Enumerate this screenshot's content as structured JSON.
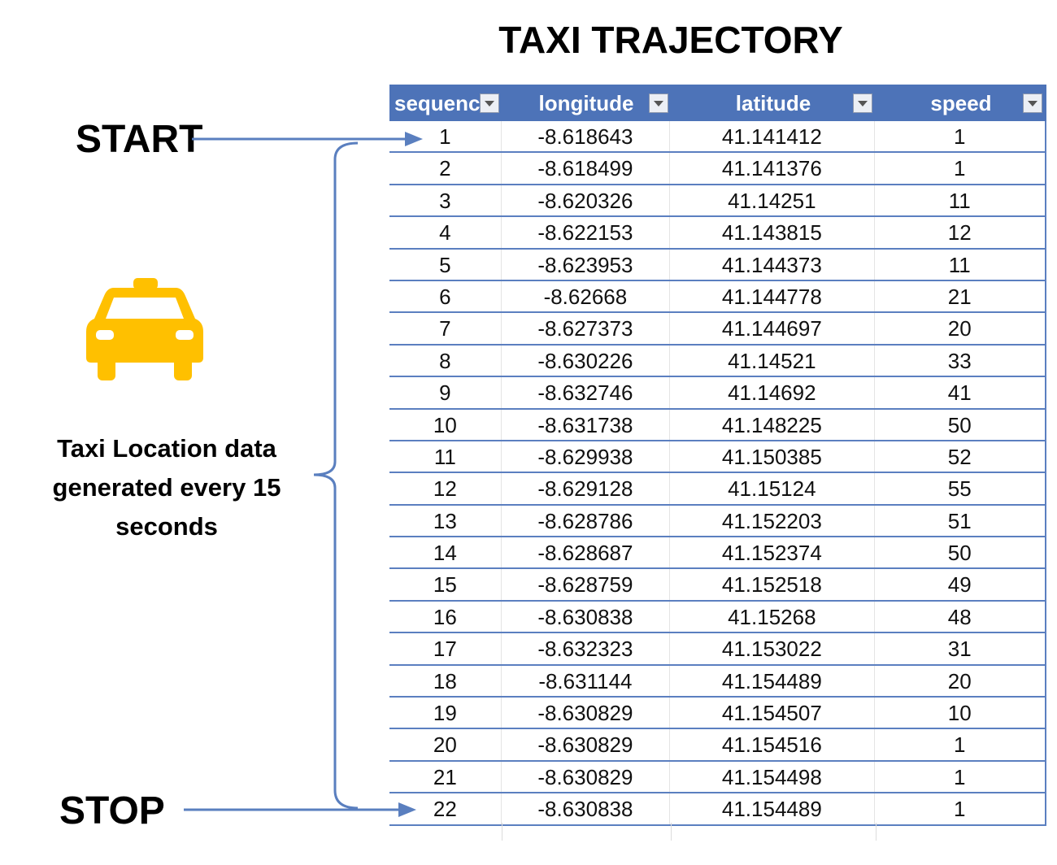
{
  "title": "TAXI TRAJECTORY",
  "labels": {
    "start": "START",
    "stop": "STOP",
    "caption_line1": "Taxi Location data",
    "caption_line2": "generated every 15",
    "caption_line3": "seconds"
  },
  "icon": "taxi-icon",
  "colors": {
    "header_bg": "#4d73b8",
    "arrow": "#5a7fbf",
    "taxi": "#ffc000"
  },
  "table": {
    "headers": [
      "sequenc",
      "longitude",
      "latitude",
      "speed"
    ],
    "rows": [
      [
        "1",
        "-8.618643",
        "41.141412",
        "1"
      ],
      [
        "2",
        "-8.618499",
        "41.141376",
        "1"
      ],
      [
        "3",
        "-8.620326",
        "41.14251",
        "11"
      ],
      [
        "4",
        "-8.622153",
        "41.143815",
        "12"
      ],
      [
        "5",
        "-8.623953",
        "41.144373",
        "11"
      ],
      [
        "6",
        "-8.62668",
        "41.144778",
        "21"
      ],
      [
        "7",
        "-8.627373",
        "41.144697",
        "20"
      ],
      [
        "8",
        "-8.630226",
        "41.14521",
        "33"
      ],
      [
        "9",
        "-8.632746",
        "41.14692",
        "41"
      ],
      [
        "10",
        "-8.631738",
        "41.148225",
        "50"
      ],
      [
        "11",
        "-8.629938",
        "41.150385",
        "52"
      ],
      [
        "12",
        "-8.629128",
        "41.15124",
        "55"
      ],
      [
        "13",
        "-8.628786",
        "41.152203",
        "51"
      ],
      [
        "14",
        "-8.628687",
        "41.152374",
        "50"
      ],
      [
        "15",
        "-8.628759",
        "41.152518",
        "49"
      ],
      [
        "16",
        "-8.630838",
        "41.15268",
        "48"
      ],
      [
        "17",
        "-8.632323",
        "41.153022",
        "31"
      ],
      [
        "18",
        "-8.631144",
        "41.154489",
        "20"
      ],
      [
        "19",
        "-8.630829",
        "41.154507",
        "10"
      ],
      [
        "20",
        "-8.630829",
        "41.154516",
        "1"
      ],
      [
        "21",
        "-8.630829",
        "41.154498",
        "1"
      ],
      [
        "22",
        "-8.630838",
        "41.154489",
        "1"
      ]
    ]
  }
}
